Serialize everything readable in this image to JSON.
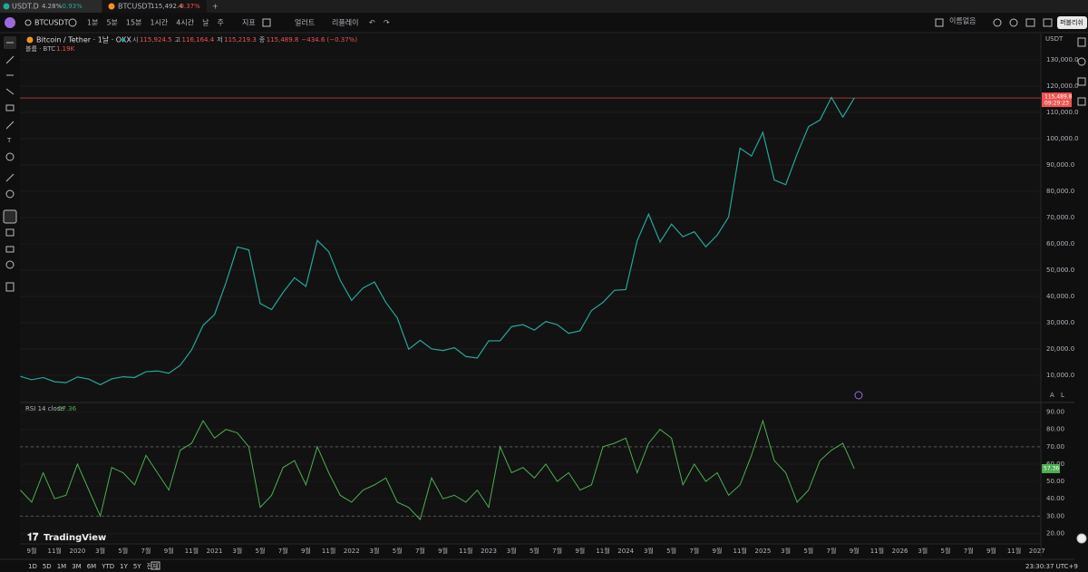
{
  "tabs": [
    {
      "symbol": "USDT.D",
      "value": "4.28%",
      "change": "-0.93%"
    },
    {
      "symbol": "BTCUSDT",
      "value": "115,492.4",
      "change": "-0.37%"
    }
  ],
  "toolbar": {
    "symbol": "BTCUSDT",
    "intervals": [
      "1분",
      "5분",
      "15분",
      "1시간",
      "4시간",
      "날",
      "주"
    ],
    "indicators": "지표",
    "alerts": "얼러트",
    "replay": "리플레이",
    "layout": "이름없음",
    "publish": "퍼블리쉬"
  },
  "legend": {
    "title": "Bitcoin / Tether · 1날 · OKX",
    "open_label": "시",
    "open": "115,924.5",
    "high_label": "고",
    "high": "116,164.4",
    "low_label": "저",
    "low": "115,219.3",
    "close_label": "종",
    "close": "115,489.8",
    "change": "−434.6 (−0.37%)",
    "volume_label": "볼륨 · BTC",
    "volume": "1.19K"
  },
  "chart": {
    "type": "line",
    "color": "#26a69a",
    "price": {
      "values": [
        9600,
        8300,
        9150,
        7550,
        7200,
        9350,
        8550,
        6400,
        8650,
        9450,
        9150,
        11350,
        11650,
        10780,
        13800,
        19700,
        29000,
        33100,
        45200,
        58800,
        57700,
        37300,
        35000,
        41500,
        47100,
        43800,
        61300,
        57000,
        46200,
        38500,
        43200,
        45500,
        37700,
        31800,
        19900,
        23300,
        20050,
        19400,
        20500,
        17150,
        16550,
        23100,
        23150,
        28500,
        29250,
        27200,
        30450,
        29250,
        25950,
        26950,
        34650,
        37700,
        42300,
        42600,
        61200,
        71300,
        60700,
        67500,
        62700,
        64600,
        58900,
        63300,
        70200,
        96400,
        93400,
        102400,
        84300,
        82500,
        94200,
        104600,
        107100,
        115700,
        108200,
        115489.8
      ]
    },
    "currency": "USDT",
    "ylim": [
      0,
      140000
    ],
    "yticks": [
      {
        "value": 130000,
        "label": "130,000.0"
      },
      {
        "value": 120000,
        "label": "120,000.0"
      },
      {
        "value": 110000,
        "label": "110,000.0"
      },
      {
        "value": 100000,
        "label": "100,000.0"
      },
      {
        "value": 90000,
        "label": "90,000.0"
      },
      {
        "value": 80000,
        "label": "80,000.0"
      },
      {
        "value": 70000,
        "label": "70,000.0"
      },
      {
        "value": 60000,
        "label": "60,000.0"
      },
      {
        "value": 50000,
        "label": "50,000.0"
      },
      {
        "value": 40000,
        "label": "40,000.0"
      },
      {
        "value": 30000,
        "label": "30,000.0"
      },
      {
        "value": 20000,
        "label": "20,000.0"
      },
      {
        "value": 10000,
        "label": "10,000.0"
      }
    ],
    "last_price": {
      "value": 115489.8,
      "label": "115,489.8"
    },
    "countdown": "09:29:23"
  },
  "rsi": {
    "title": "RSI 14 close",
    "color": "#4caf50",
    "values": [
      45,
      38,
      55,
      40,
      42,
      60,
      45,
      30,
      58,
      55,
      48,
      65,
      55,
      45,
      68,
      72,
      85,
      75,
      80,
      78,
      70,
      35,
      42,
      58,
      62,
      48,
      70,
      55,
      42,
      38,
      45,
      48,
      52,
      38,
      35,
      28,
      52,
      40,
      42,
      38,
      45,
      35,
      70,
      55,
      58,
      52,
      60,
      50,
      55,
      45,
      48,
      70,
      72,
      75,
      55,
      72,
      80,
      75,
      48,
      60,
      50,
      55,
      42,
      48,
      65,
      85,
      62,
      55,
      38,
      45,
      62,
      68,
      72,
      57.36
    ],
    "last": {
      "value": 57.36,
      "label": "57.36"
    },
    "ylim": [
      15,
      95
    ],
    "bands": [
      70,
      30
    ],
    "yticks": [
      {
        "value": 90,
        "label": "90.00"
      },
      {
        "value": 80,
        "label": "80.00"
      },
      {
        "value": 70,
        "label": "70.00"
      },
      {
        "value": 60,
        "label": "60.00"
      },
      {
        "value": 50,
        "label": "50.00"
      },
      {
        "value": 40,
        "label": "40.00"
      },
      {
        "value": 30,
        "label": "30.00"
      },
      {
        "value": 20,
        "label": "20.00"
      }
    ]
  },
  "time_axis": [
    "9월",
    "11월",
    "2020",
    "3월",
    "5월",
    "7월",
    "9월",
    "11월",
    "2021",
    "3월",
    "5월",
    "7월",
    "9월",
    "11월",
    "2022",
    "3월",
    "5월",
    "7월",
    "9월",
    "11월",
    "2023",
    "3월",
    "5월",
    "7월",
    "9월",
    "11월",
    "2024",
    "3월",
    "5월",
    "7월",
    "9월",
    "11월",
    "2025",
    "3월",
    "5월",
    "7월",
    "9월",
    "11월",
    "2026",
    "3월",
    "5월",
    "7월",
    "9월",
    "11월",
    "2027"
  ],
  "ranges": [
    "1D",
    "5D",
    "1M",
    "3M",
    "6M",
    "YTD",
    "1Y",
    "5Y",
    "전체"
  ],
  "clock": "23:30:37 UTC+9",
  "logo": "TradingView",
  "scale_buttons": [
    "A",
    "L"
  ]
}
